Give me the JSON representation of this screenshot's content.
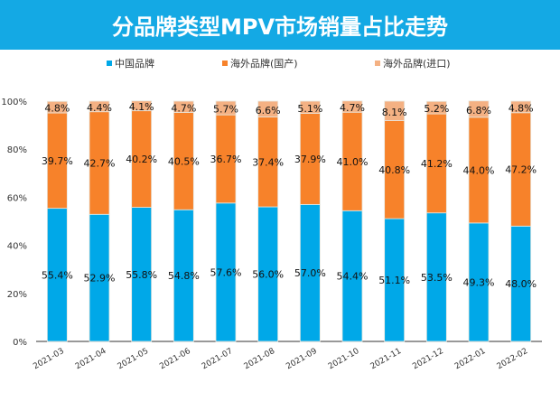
{
  "chart_data": {
    "type": "bar",
    "stacked": true,
    "title": "分品牌类型MPV市场销量占比走势",
    "categories": [
      "2021-03",
      "2021-04",
      "2021-05",
      "2021-06",
      "2021-07",
      "2021-08",
      "2021-09",
      "2021-10",
      "2021-11",
      "2021-12",
      "2022-01",
      "2022-02"
    ],
    "series": [
      {
        "name": "中国品牌",
        "color": "#00a8e8",
        "values": [
          55.4,
          52.9,
          55.8,
          54.8,
          57.6,
          56.0,
          57.0,
          54.4,
          51.1,
          53.5,
          49.3,
          48.0
        ]
      },
      {
        "name": "海外品牌(国产)",
        "color": "#f7822a",
        "values": [
          39.7,
          42.7,
          40.2,
          40.5,
          36.7,
          37.4,
          37.9,
          41.0,
          40.8,
          41.2,
          44.0,
          47.2
        ]
      },
      {
        "name": "海外品牌(进口)",
        "color": "#f4b183",
        "values": [
          4.8,
          4.4,
          4.1,
          4.7,
          5.7,
          6.6,
          5.1,
          4.7,
          8.1,
          5.2,
          6.8,
          4.8
        ]
      }
    ],
    "yticks": [
      "0%",
      "20%",
      "40%",
      "60%",
      "80%",
      "100%"
    ],
    "ylim": [
      0,
      100
    ],
    "legend": "top",
    "grid": false,
    "xlabel": "",
    "ylabel": ""
  }
}
